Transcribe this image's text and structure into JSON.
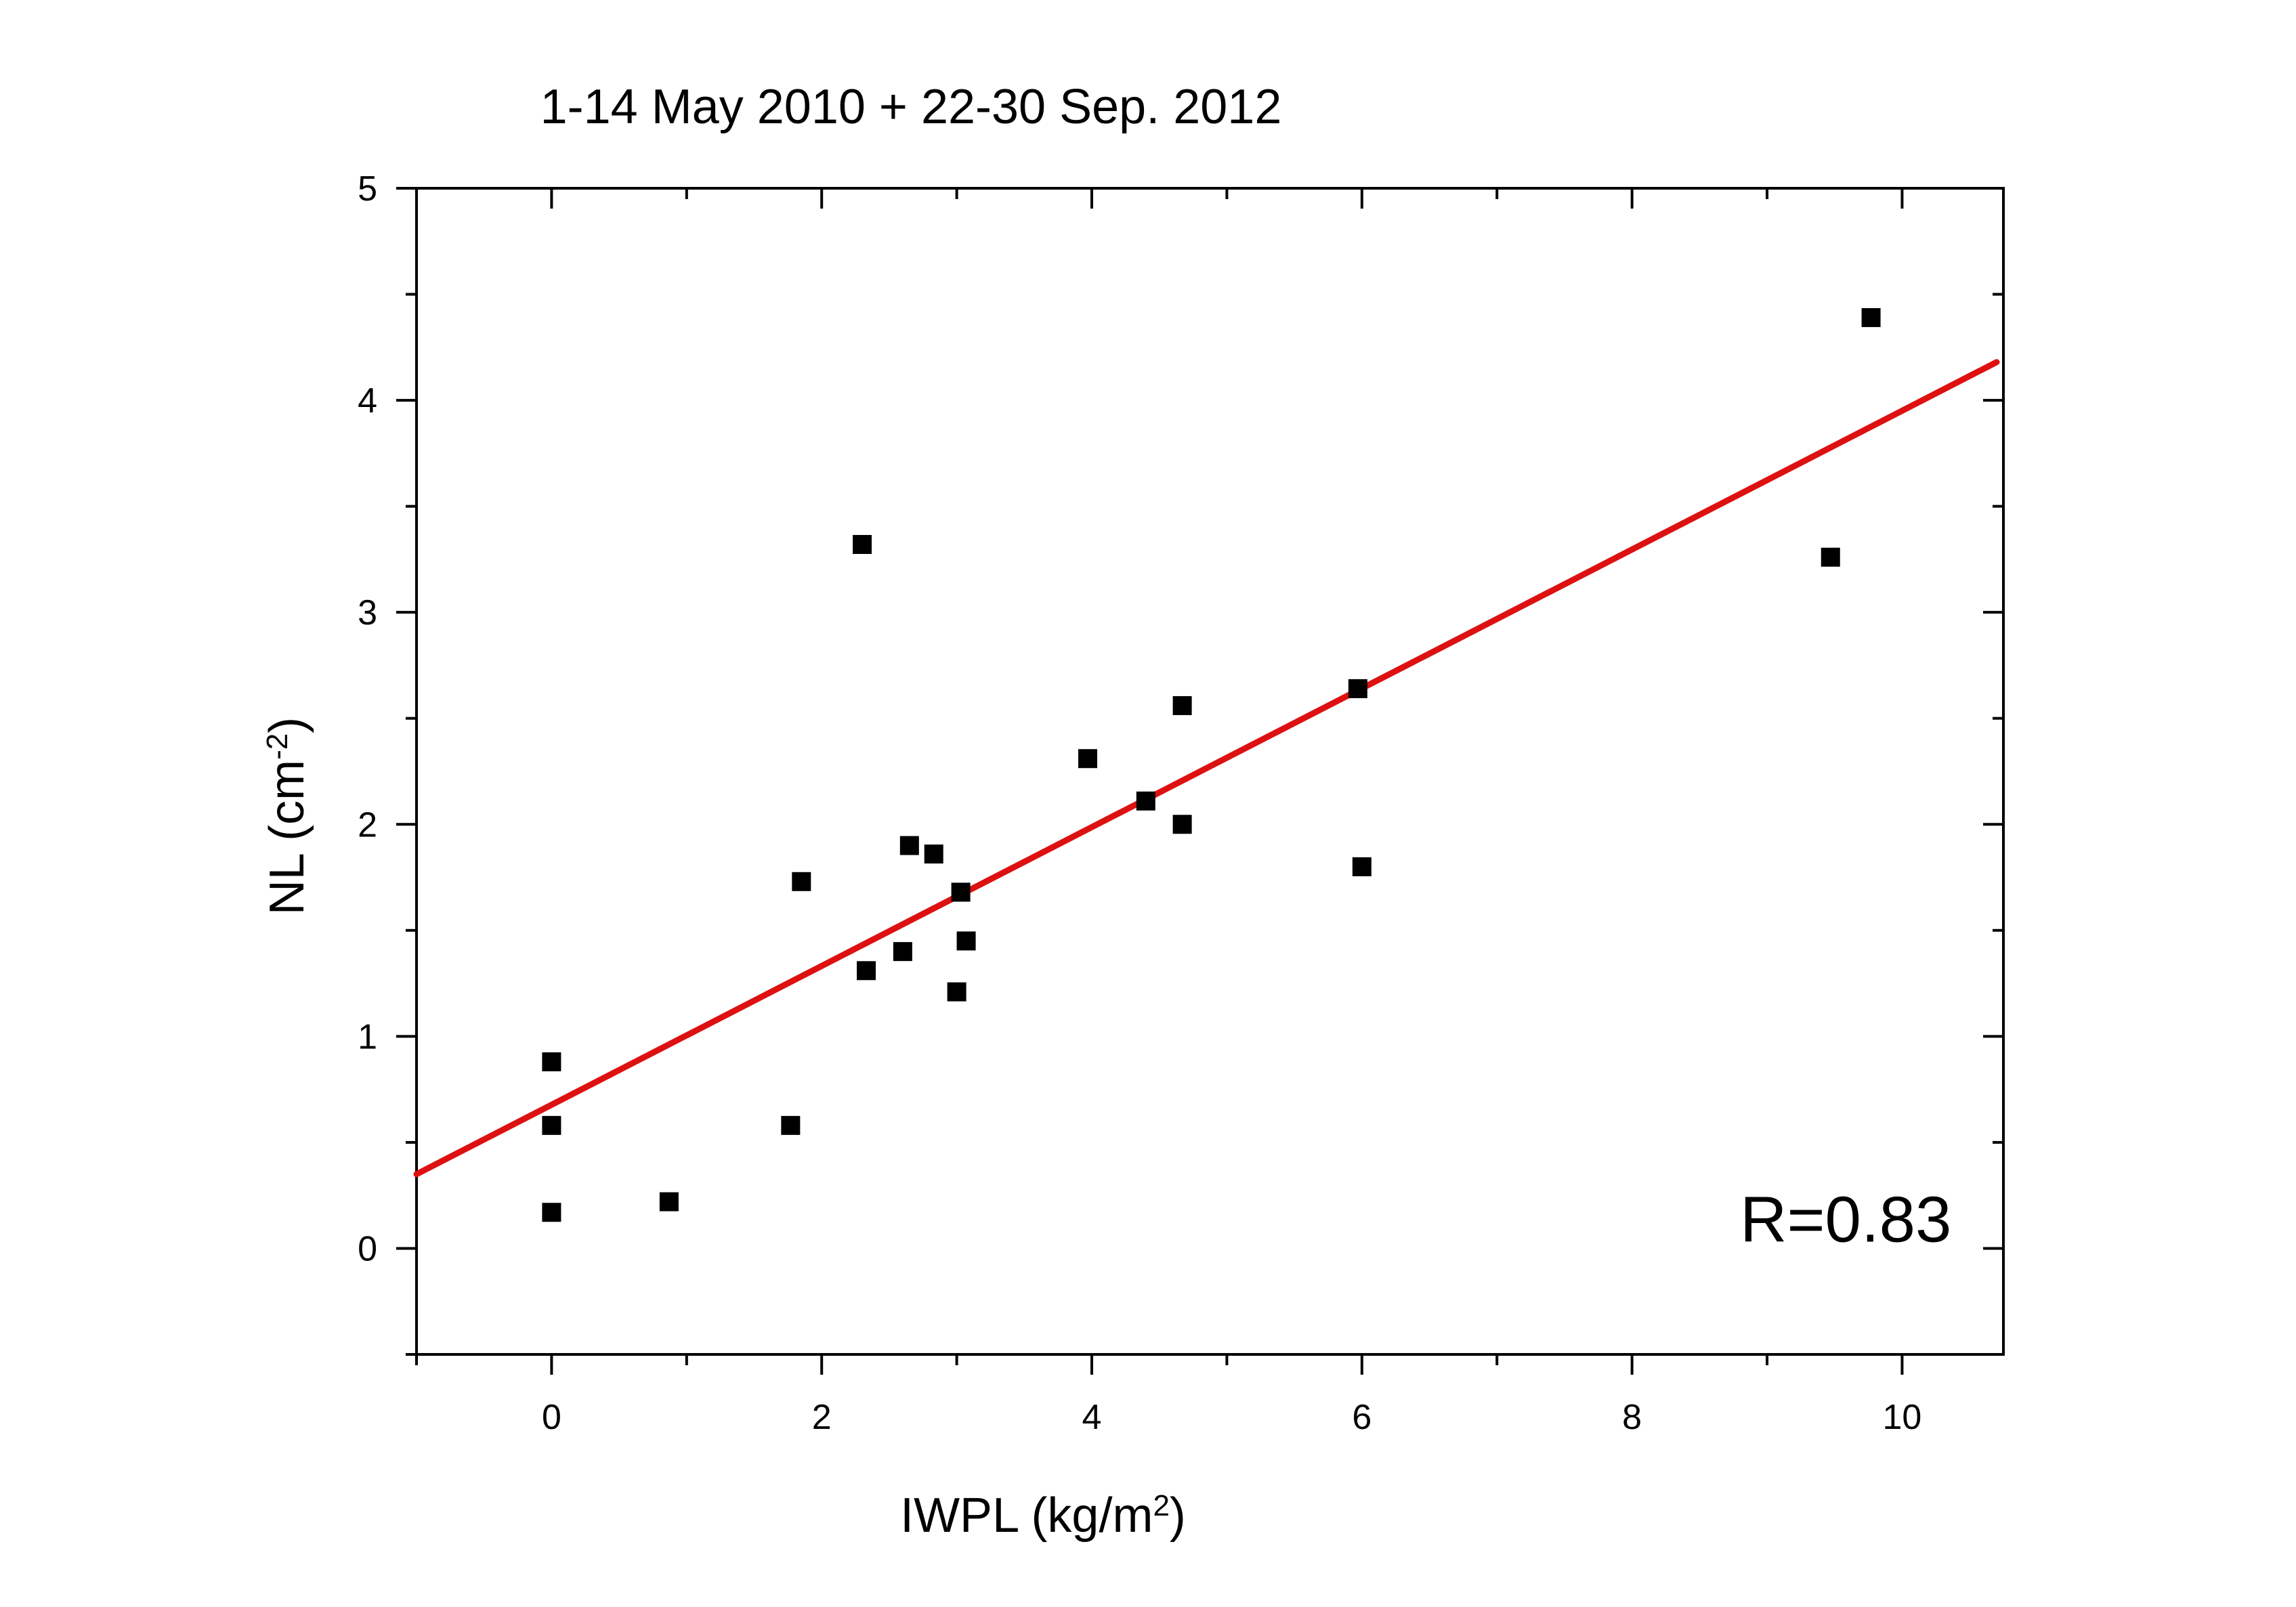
{
  "chart_data": {
    "type": "scatter",
    "title": "1-14 May 2010 + 22-30 Sep. 2012",
    "xlabel": {
      "base": "IWPL (kg/m",
      "sup": "2",
      "tail": ")"
    },
    "ylabel": {
      "base": "NL (cm",
      "sup": "-2",
      "tail": ")"
    },
    "xlim": [
      -1,
      10.75
    ],
    "ylim": [
      -0.5,
      5
    ],
    "xticks": [
      0,
      2,
      4,
      6,
      8,
      10
    ],
    "xtick_labels": [
      "0",
      "2",
      "4",
      "6",
      "8",
      "10"
    ],
    "yticks": [
      0,
      1,
      2,
      3,
      4,
      5
    ],
    "ytick_labels": [
      "0",
      "1",
      "2",
      "3",
      "4",
      "5"
    ],
    "grid": false,
    "legend": "none",
    "series": [
      {
        "marker": "square",
        "color": "#000000",
        "points": [
          [
            0.0,
            0.88
          ],
          [
            0.0,
            0.58
          ],
          [
            0.0,
            0.17
          ],
          [
            0.87,
            0.22
          ],
          [
            1.77,
            0.58
          ],
          [
            1.85,
            1.73
          ],
          [
            2.3,
            3.32
          ],
          [
            2.33,
            1.31
          ],
          [
            2.6,
            1.4
          ],
          [
            2.65,
            1.9
          ],
          [
            2.83,
            1.86
          ],
          [
            3.0,
            1.21
          ],
          [
            3.03,
            1.68
          ],
          [
            3.07,
            1.45
          ],
          [
            3.97,
            2.31
          ],
          [
            4.4,
            2.11
          ],
          [
            4.67,
            2.56
          ],
          [
            4.67,
            2.0
          ],
          [
            5.97,
            2.64
          ],
          [
            6.0,
            1.8
          ],
          [
            9.47,
            3.26
          ],
          [
            9.77,
            4.39
          ]
        ]
      }
    ],
    "fit_line": {
      "color": "#dd1111",
      "x": [
        -1,
        10.7
      ],
      "y": [
        0.35,
        4.18
      ]
    },
    "annotation": {
      "text": "R=0.83",
      "x": 8.8,
      "y": 0.14
    }
  }
}
